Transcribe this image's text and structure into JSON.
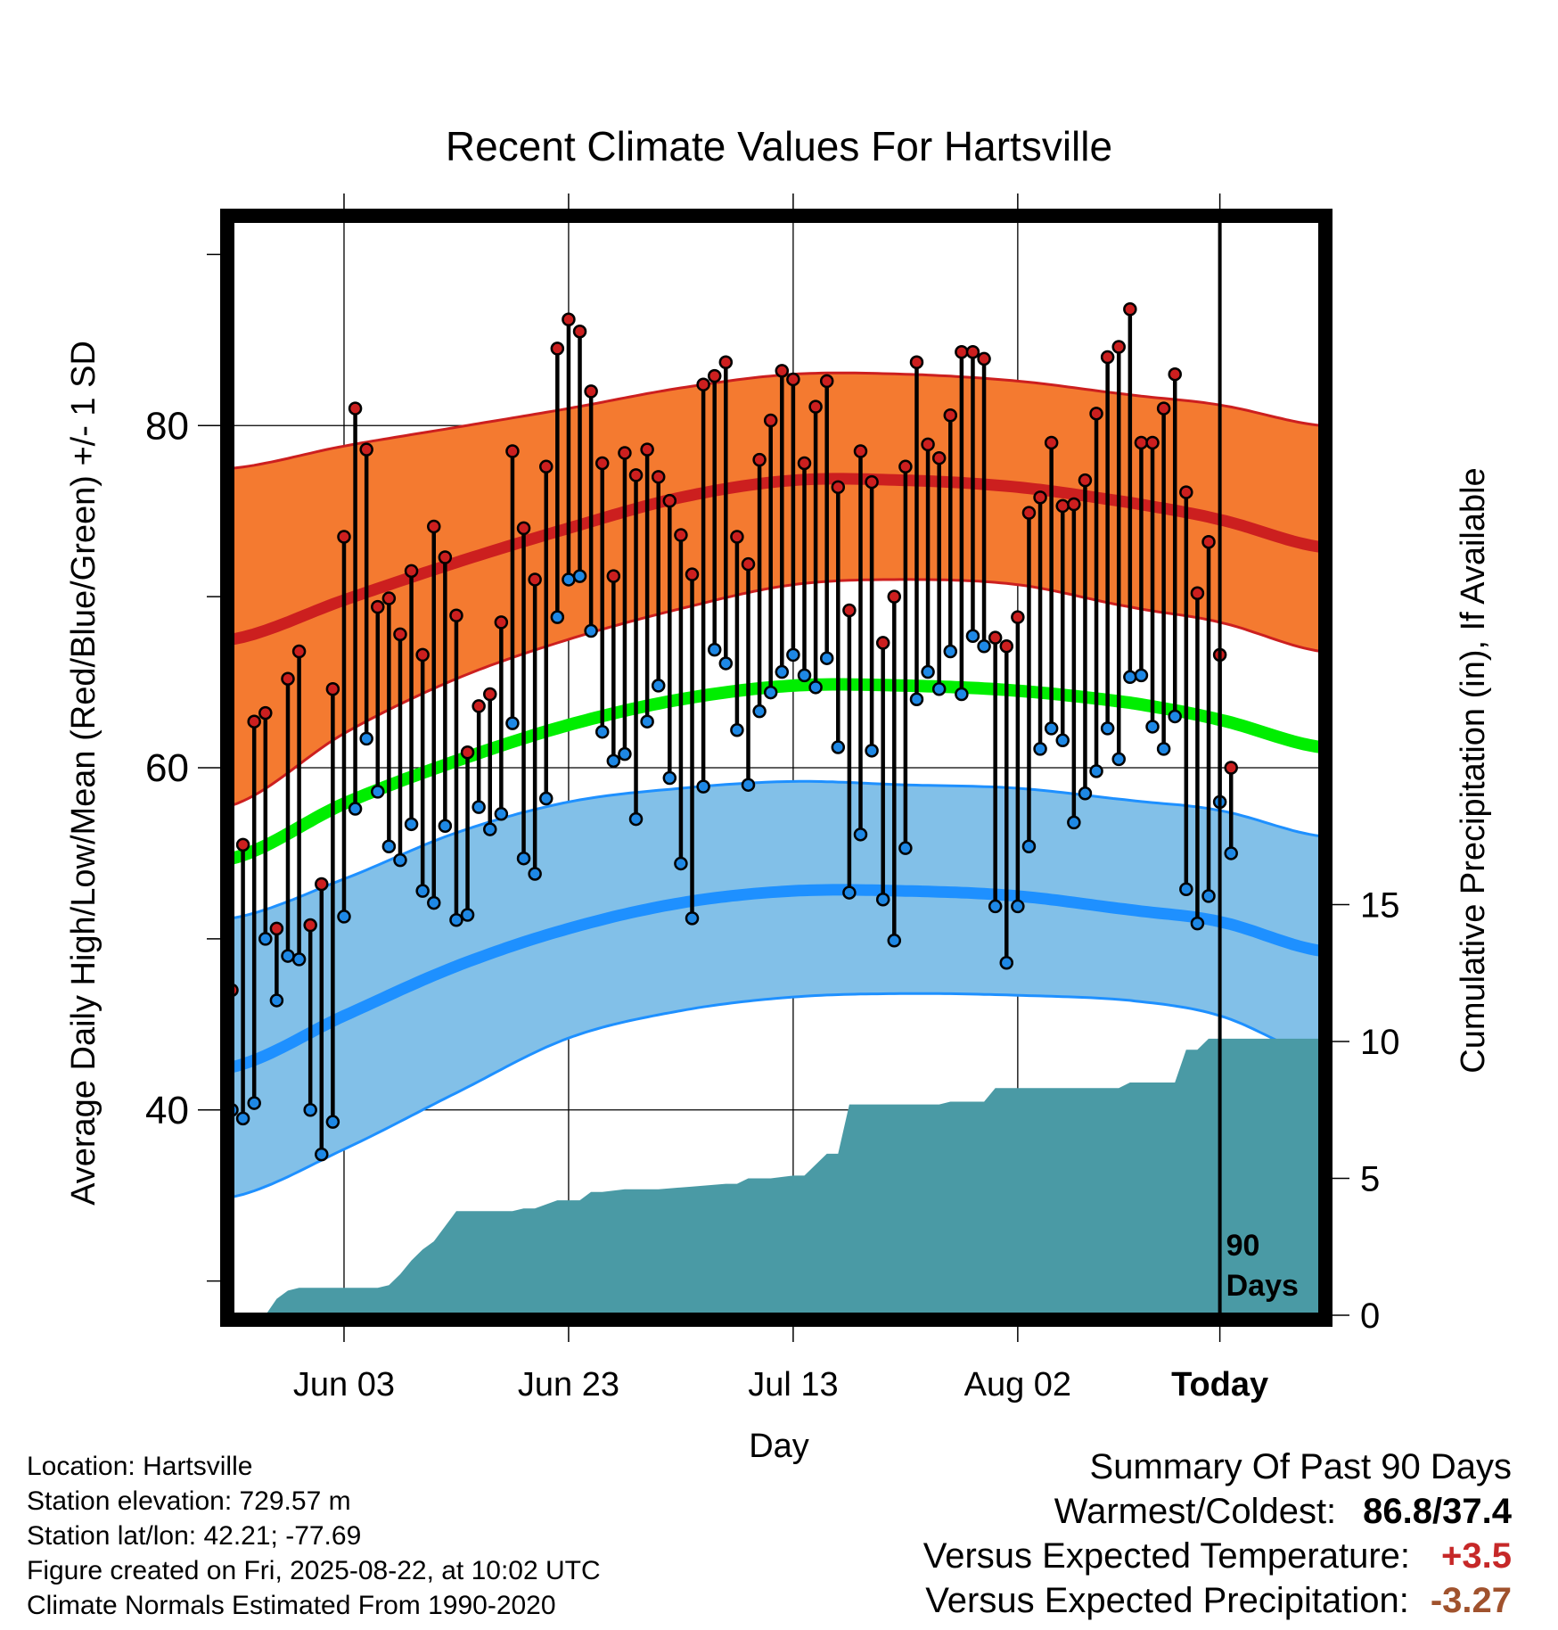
{
  "chart_data": {
    "type": "line",
    "title": "Recent Climate Values For Hartsville",
    "xlabel": "Day",
    "ylabel": "Average Daily High/Low/Mean (Red/Blue/Green) +/- 1 SD",
    "y2label": "Cumulative Precipitation (in), If Available",
    "ylim": [
      28,
      92
    ],
    "y2lim": [
      0,
      40
    ],
    "x_day_range": [
      -88,
      9
    ],
    "x_ticks": [
      {
        "day": -78,
        "label": "Jun 03"
      },
      {
        "day": -58,
        "label": "Jun 23"
      },
      {
        "day": -38,
        "label": "Jul 13"
      },
      {
        "day": -18,
        "label": "Aug 02"
      },
      {
        "day": 0,
        "label": "Today"
      }
    ],
    "y_ticks": [
      40,
      60,
      80
    ],
    "y2_ticks": [
      0,
      5,
      10,
      15
    ],
    "today_label": [
      "90",
      "Days"
    ],
    "grid": true,
    "normals": {
      "days": [
        -88,
        -78,
        -68,
        -58,
        -48,
        -38,
        -28,
        -18,
        -8,
        0,
        9
      ],
      "high_mean": [
        67.5,
        69.8,
        72.0,
        74.0,
        75.8,
        76.8,
        76.8,
        76.4,
        75.5,
        74.5,
        72.9
      ],
      "high_plus_sd": [
        77.5,
        78.8,
        79.9,
        81.0,
        82.2,
        83.0,
        83.0,
        82.6,
        81.8,
        81.2,
        80.0
      ],
      "high_minus_sd": [
        57.8,
        62.0,
        65.2,
        67.5,
        69.3,
        70.7,
        71.0,
        70.7,
        69.4,
        68.5,
        66.8
      ],
      "mean": [
        54.7,
        57.9,
        60.4,
        62.5,
        64.0,
        64.8,
        64.8,
        64.5,
        63.8,
        62.8,
        61.2
      ],
      "low_mean": [
        42.5,
        45.5,
        48.4,
        50.6,
        52.1,
        52.8,
        52.8,
        52.5,
        51.7,
        51.0,
        49.3
      ],
      "low_plus_sd": [
        51.2,
        53.5,
        56.2,
        58.0,
        58.8,
        59.2,
        59.0,
        58.8,
        58.1,
        57.5,
        56.0
      ],
      "low_minus_sd": [
        34.9,
        37.7,
        41.0,
        44.2,
        45.8,
        46.6,
        46.8,
        46.7,
        46.4,
        45.5,
        43.1
      ]
    },
    "series": [
      {
        "name": "High",
        "color": "#cc1f1f",
        "values": [
          47,
          55.5,
          62.7,
          63.2,
          50.6,
          65.2,
          66.8,
          50.8,
          53.2,
          64.6,
          73.5,
          81,
          78.6,
          69.4,
          69.9,
          67.8,
          71.5,
          66.6,
          74.1,
          72.3,
          68.9,
          60.9,
          63.6,
          64.3,
          68.5,
          78.5,
          74,
          71,
          77.6,
          84.5,
          86.2,
          85.5,
          82,
          77.8,
          71.2,
          78.4,
          77.1,
          78.6,
          77,
          75.6,
          73.6,
          71.3,
          82.4,
          82.9,
          83.7,
          73.5,
          71.9,
          78,
          80.3,
          83.2,
          82.7,
          77.8,
          81.1,
          82.6,
          76.4,
          69.2,
          78.5,
          76.7,
          67.3,
          70,
          77.6,
          83.7,
          78.9,
          78.1,
          80.6,
          84.3,
          84.3,
          83.9,
          67.6,
          67.1,
          68.8,
          74.9,
          75.8,
          79,
          75.3,
          75.4,
          76.8,
          80.7,
          84,
          84.6,
          86.8,
          79,
          79,
          81,
          83,
          76.1,
          70.2,
          73.2,
          66.6,
          60
        ]
      },
      {
        "name": "Low",
        "color": "#1e88e5",
        "values": [
          40,
          39.5,
          40.4,
          50,
          46.4,
          49,
          48.8,
          40,
          37.4,
          39.3,
          51.3,
          57.6,
          61.7,
          58.6,
          55.4,
          54.6,
          56.7,
          52.8,
          52.1,
          56.6,
          51.1,
          51.4,
          57.7,
          56.4,
          57.3,
          62.6,
          54.7,
          53.8,
          58.2,
          68.8,
          71,
          71.2,
          68,
          62.1,
          60.4,
          60.8,
          57,
          62.7,
          64.8,
          59.4,
          54.4,
          51.2,
          58.9,
          66.9,
          66.1,
          62.2,
          59,
          63.3,
          64.4,
          65.6,
          66.6,
          65.4,
          64.7,
          66.4,
          61.2,
          52.7,
          56.1,
          61,
          52.3,
          49.9,
          55.3,
          64,
          65.6,
          64.6,
          66.8,
          64.3,
          67.7,
          67.1,
          51.9,
          48.6,
          51.9,
          55.4,
          61.1,
          62.3,
          61.6,
          56.8,
          58.5,
          59.8,
          62.3,
          60.5,
          65.3,
          65.4,
          62.4,
          61.1,
          63,
          52.9,
          50.9,
          52.5,
          58,
          55
        ]
      }
    ],
    "precipitation": {
      "days": [
        -88,
        -85,
        -84,
        -83,
        -82,
        -81,
        -80,
        -79,
        -78,
        -77,
        -76,
        -75,
        -74,
        -73,
        -72,
        -71,
        -70,
        -68,
        -66,
        -65,
        -63,
        -62,
        -61,
        -59,
        -57,
        -56,
        -55,
        -53,
        -50,
        -47,
        -44,
        -43,
        -42,
        -40,
        -38,
        -37,
        -35,
        -34,
        -33,
        -27,
        -25,
        -24,
        -22,
        -21,
        -20,
        -19,
        -18,
        -15,
        -12,
        -9,
        -8,
        -7,
        -6,
        -5,
        -4,
        -3,
        -2,
        -1,
        0,
        9
      ],
      "values": [
        0,
        0,
        0.6,
        0.9,
        1.0,
        1.0,
        1.0,
        1.0,
        1.0,
        1.0,
        1.0,
        1.0,
        1.1,
        1.5,
        2.0,
        2.4,
        2.7,
        3.8,
        3.8,
        3.8,
        3.8,
        3.9,
        3.9,
        4.2,
        4.2,
        4.5,
        4.5,
        4.6,
        4.6,
        4.7,
        4.8,
        4.8,
        5.0,
        5.0,
        5.1,
        5.1,
        5.9,
        5.9,
        7.7,
        7.7,
        7.7,
        7.8,
        7.8,
        7.8,
        8.3,
        8.3,
        8.3,
        8.3,
        8.3,
        8.3,
        8.5,
        8.5,
        8.5,
        8.5,
        8.5,
        9.7,
        9.7,
        10.1,
        10.1,
        10.1
      ]
    }
  },
  "info": {
    "location": "Location: Hartsville",
    "elevation": "Station elevation: 729.57 m",
    "latlon": "Station lat/lon: 42.21; -77.69",
    "created": "Figure created on Fri, 2025-08-22, at 10:02 UTC",
    "normals": "Climate Normals Estimated From 1990-2020"
  },
  "summary": {
    "title": "Summary Of Past 90 Days",
    "warmest_label": "Warmest/Coldest:",
    "warmest_value": "86.8/37.4",
    "temp_label": "Versus Expected Temperature:",
    "temp_value": "+3.5",
    "temp_color": "#c62828",
    "precip_label": "Versus Expected Precipitation:",
    "precip_value": "-3.27",
    "precip_color": "#a0522d"
  },
  "colors": {
    "high_band": "#f47a30",
    "high_line": "#cc1f1f",
    "mean_line": "#00ee00",
    "low_band": "#82c0e8",
    "low_line": "#1e90ff",
    "precip_fill": "#4a9aa5"
  }
}
